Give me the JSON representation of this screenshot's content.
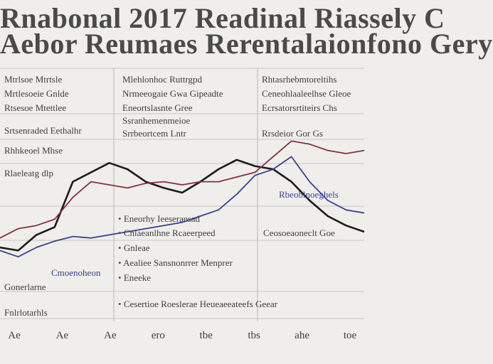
{
  "title": {
    "line1": "Rnabonal 2017 Readinal Riassely C",
    "line2": "Aebor Reumaes Rerentalaionfono Gery"
  },
  "columns": [
    {
      "name": "left",
      "notes": [
        "Mtrlsoe Mtrtsle",
        "Mrtlesoeie Gnlde",
        "Rtsesoe Mtettlee",
        "Srtsenraded Eethalhr",
        "Rhhkeoel Mhse",
        "Rlaeleatg dlp"
      ]
    },
    {
      "name": "middle",
      "notes": [
        "Mlehlonhoc Ruttrgpd",
        "Nrmeeogaie Gwa Gipeadte",
        "Eneortslasnte Gree",
        "Ssranhemenmeioe",
        "Srrbeortcem Lntr"
      ]
    },
    {
      "name": "right",
      "notes": [
        "Rhtasrhebmtoreltihs",
        "Ceneohlaaleelhse Gleoe",
        "Ecrsatorsrtiteirs Chs",
        "Rrsdeior Gor Gs"
      ]
    }
  ],
  "annotations": {
    "middle_list": [
      "Eneorhy Ieeseraesad",
      "Cnlaeanlhne Rcaeerpeed",
      "Gnleae",
      "Aealiee Sansnonrrer Menprer",
      "Eneeke"
    ],
    "middle_bottom": "Cesertioe Roeslerae Heueaeeateefs Geear",
    "right_series_label": "Rbeoblnoeghels",
    "right_lower": "Ceosoeaoneclt Goe",
    "left_lower_1": "Cmoenoheon",
    "left_lower_2": "Gonerlarne",
    "left_lower_3": "Fnlrlotarhls"
  },
  "chart_data": {
    "type": "line",
    "title": "",
    "xlabel": "",
    "ylabel": "",
    "categories": [
      "Ae",
      "Ae",
      "Ae",
      "ero",
      "tbe",
      "tbs",
      "ahe",
      "toe"
    ],
    "x": [
      0,
      5,
      10,
      15,
      20,
      25,
      30,
      35,
      40,
      45,
      50,
      55,
      60,
      65,
      70,
      75,
      80,
      85,
      90,
      95,
      100
    ],
    "xlim": [
      0,
      100
    ],
    "ylim": [
      0,
      100
    ],
    "grid": true,
    "series": [
      {
        "color": "#1c1c1c",
        "values": [
          20,
          18,
          28,
          33,
          62,
          68,
          74,
          70,
          62,
          58,
          55,
          62,
          70,
          76,
          72,
          70,
          62,
          50,
          40,
          34,
          30
        ]
      },
      {
        "color": "#8a2e42",
        "values": [
          26,
          32,
          34,
          38,
          52,
          62,
          60,
          58,
          61,
          62,
          60,
          62,
          62,
          65,
          68,
          78,
          88,
          86,
          82,
          80,
          82
        ]
      },
      {
        "color": "#3b3f8f",
        "values": [
          18,
          14,
          20,
          24,
          27,
          26,
          28,
          30,
          32,
          34,
          36,
          40,
          44,
          54,
          66,
          70,
          78,
          62,
          50,
          44,
          42
        ]
      }
    ]
  }
}
